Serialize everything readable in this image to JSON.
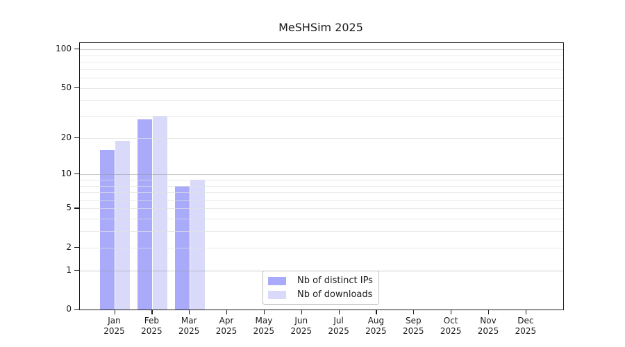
{
  "figure": {
    "background": "#ffffff",
    "spine_color": "#1a1a1a",
    "text_color": "#1a1a1a"
  },
  "chart_data": {
    "type": "bar",
    "title": "MeSHSim 2025",
    "x_tick_labels": [
      {
        "month": "Jan",
        "year": "2025"
      },
      {
        "month": "Feb",
        "year": "2025"
      },
      {
        "month": "Mar",
        "year": "2025"
      },
      {
        "month": "Apr",
        "year": "2025"
      },
      {
        "month": "May",
        "year": "2025"
      },
      {
        "month": "Jun",
        "year": "2025"
      },
      {
        "month": "Jul",
        "year": "2025"
      },
      {
        "month": "Aug",
        "year": "2025"
      },
      {
        "month": "Sep",
        "year": "2025"
      },
      {
        "month": "Oct",
        "year": "2025"
      },
      {
        "month": "Nov",
        "year": "2025"
      },
      {
        "month": "Dec",
        "year": "2025"
      }
    ],
    "series": [
      {
        "name": "Nb of distinct IPs",
        "color": "#aaaafa",
        "values": [
          16,
          28,
          8,
          0,
          0,
          0,
          0,
          0,
          0,
          0,
          0,
          0
        ]
      },
      {
        "name": "Nb of downloads",
        "color": "#d9d9fa",
        "values": [
          19,
          30,
          9,
          0,
          0,
          0,
          0,
          0,
          0,
          0,
          0,
          0
        ]
      }
    ],
    "y_scale": "log1p",
    "ylim": [
      0,
      112
    ],
    "y_ticks": [
      {
        "value": 100,
        "label": "100"
      },
      {
        "value": 50,
        "label": "50"
      },
      {
        "value": 20,
        "label": "20"
      },
      {
        "value": 10,
        "label": "10"
      },
      {
        "value": 5,
        "label": "5"
      },
      {
        "value": 2,
        "label": "2"
      },
      {
        "value": 1,
        "label": "1"
      },
      {
        "value": 0,
        "label": "0"
      }
    ],
    "grid": {
      "major_values": [
        1,
        10,
        100
      ],
      "minor_values": [
        2,
        3,
        4,
        5,
        6,
        7,
        8,
        9,
        20,
        30,
        40,
        50,
        60,
        70,
        80,
        90
      ]
    },
    "legend": {
      "position": "lower center",
      "entries": [
        "Nb of distinct IPs",
        "Nb of downloads"
      ]
    }
  }
}
